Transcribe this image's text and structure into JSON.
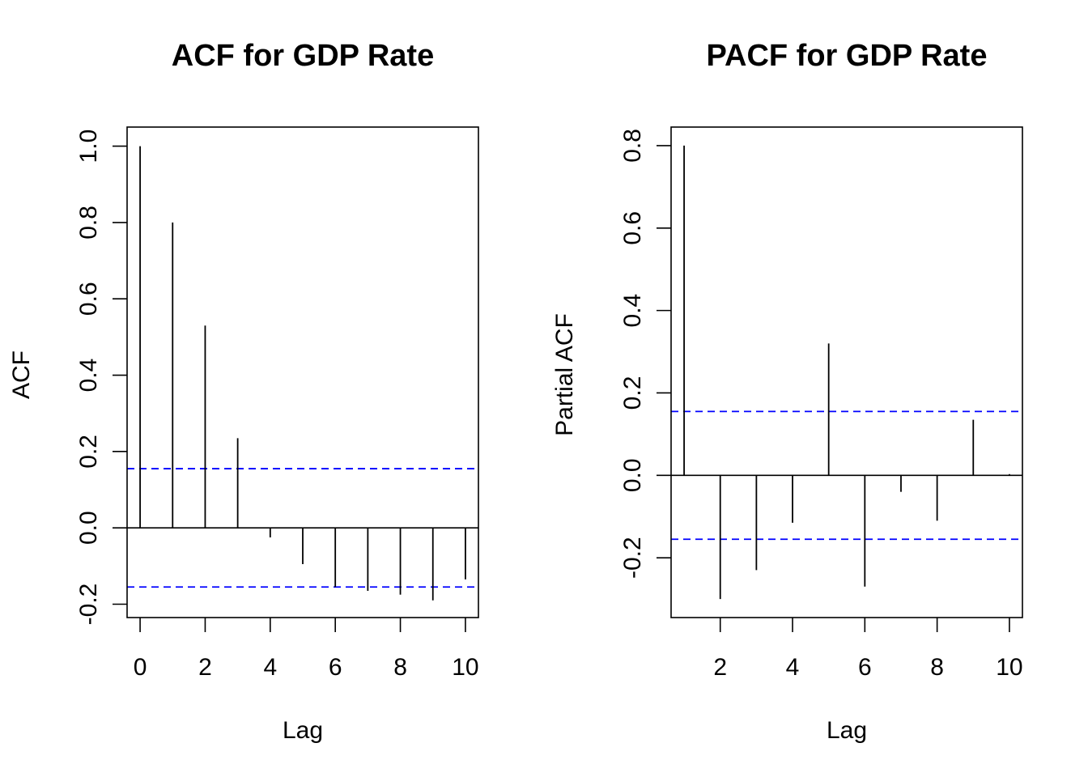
{
  "chart_data": [
    {
      "type": "bar",
      "subtype": "acf-stem",
      "title": "ACF for GDP Rate",
      "xlabel": "Lag",
      "ylabel": "ACF",
      "x_ticks": [
        "0",
        "2",
        "4",
        "6",
        "8",
        "10"
      ],
      "y_ticks": [
        "-0.2",
        "0.0",
        "0.2",
        "0.4",
        "0.6",
        "0.8",
        "1.0"
      ],
      "xlim": [
        -0.4,
        10.4
      ],
      "ylim": [
        -0.235,
        1.05
      ],
      "x": [
        0,
        1,
        2,
        3,
        4,
        5,
        6,
        7,
        8,
        9,
        10
      ],
      "values": [
        1.0,
        0.8,
        0.53,
        0.235,
        -0.025,
        -0.095,
        -0.155,
        -0.165,
        -0.175,
        -0.19,
        -0.135
      ],
      "confidence_band": [
        0.155,
        -0.155
      ],
      "grid": false,
      "colors": {
        "stems": "#000000",
        "band": "#0000ff"
      }
    },
    {
      "type": "bar",
      "subtype": "pacf-stem",
      "title": "PACF for GDP Rate",
      "xlabel": "Lag",
      "ylabel": "Partial ACF",
      "x_ticks": [
        "2",
        "4",
        "6",
        "8",
        "10"
      ],
      "y_ticks": [
        "-0.2",
        "0.0",
        "0.2",
        "0.4",
        "0.6",
        "0.8"
      ],
      "xlim": [
        0.64,
        10.36
      ],
      "ylim": [
        -0.345,
        0.845
      ],
      "x": [
        1,
        2,
        3,
        4,
        5,
        6,
        7,
        8,
        9,
        10
      ],
      "values": [
        0.8,
        -0.3,
        -0.23,
        -0.115,
        0.32,
        -0.27,
        -0.04,
        -0.11,
        0.135,
        0.003
      ],
      "confidence_band": [
        0.155,
        -0.155
      ],
      "grid": false,
      "colors": {
        "stems": "#000000",
        "band": "#0000ff"
      }
    }
  ]
}
